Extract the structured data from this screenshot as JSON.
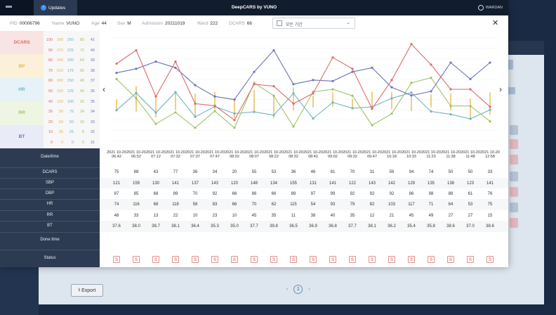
{
  "app": {
    "title": "DeepCARS by VUNO",
    "updates_label": "Updates",
    "updates_icon": "arrow-up-icon",
    "user_label": "WARDAN"
  },
  "patient": {
    "pid_label": "PID",
    "pid": "00006796",
    "name_label": "Name",
    "name": "VUNO",
    "age_label": "Age",
    "age": "44",
    "sex_label": "Sex",
    "sex": "M",
    "admission_label": "Admission",
    "admission": "20211019",
    "ward_label": "Ward",
    "ward": "222",
    "dcars_label": "DCARS",
    "dcars": "66"
  },
  "period_select": {
    "value": "모든 기간"
  },
  "colors": {
    "dcars": "#e06a6a",
    "bp": "#e6b84d",
    "hr": "#6fb3c9",
    "rr": "#9ec46a",
    "bt": "#6c74b8"
  },
  "chart_labels": [
    "DCARS",
    "BP",
    "HR",
    "RR",
    "BT"
  ],
  "scale_columns": [
    {
      "color": "#e06a6a",
      "values": [
        "100",
        "90",
        "80",
        "70",
        "60",
        "50",
        "40",
        "30",
        "20",
        "10",
        "0"
      ]
    },
    {
      "color": "#e6b84d",
      "values": [
        "300",
        "270",
        "240",
        "210",
        "180",
        "150",
        "120",
        "90",
        "60",
        "30",
        "0"
      ]
    },
    {
      "color": "#6fb3c9",
      "values": [
        "250",
        "225",
        "200",
        "175",
        "150",
        "125",
        "100",
        "75",
        "50",
        "25",
        "0"
      ]
    },
    {
      "color": "#9ec46a",
      "values": [
        "80",
        "72",
        "64",
        "56",
        "48",
        "40",
        "32",
        "24",
        "16",
        "8",
        "0"
      ]
    },
    {
      "color": "#6c74b8",
      "values": [
        "41",
        "40",
        "39",
        "38",
        "37",
        "36",
        "35",
        "34",
        "33",
        "32",
        "31"
      ]
    }
  ],
  "table": {
    "row_labels": [
      "Date/time",
      "DCARS",
      "SBP",
      "DBP",
      "HR",
      "RR",
      "BT",
      "Done time",
      "Status"
    ],
    "dates": [
      "2021 10-20 06:42",
      "2021 10-20 06:52",
      "2021 10-20 07:12",
      "2021 10-20 07:32",
      "2021 10-20 07:37",
      "2021 10-20 07:47",
      "2021 10-20 08:02",
      "2021 10-20 08:07",
      "2021 10-20 08:22",
      "2021 10-20 08:32",
      "2021 10-20 08:42",
      "2021 10-20 09:02",
      "2021 10-20 09:32",
      "2021 10-20 09:47",
      "2021 10-20 10:18",
      "2021 10-20 10:33",
      "2021 10-20 11:23",
      "2021 10-20 11:38",
      "2021 10-20 11:48",
      "2021 10-20 12:58"
    ],
    "dcars": [
      "75",
      "88",
      "43",
      "77",
      "36",
      "34",
      "20",
      "55",
      "53",
      "36",
      "46",
      "81",
      "70",
      "31",
      "59",
      "94",
      "74",
      "50",
      "50",
      "33"
    ],
    "sbp": [
      "121",
      "159",
      "130",
      "141",
      "137",
      "143",
      "120",
      "148",
      "134",
      "155",
      "131",
      "141",
      "122",
      "143",
      "142",
      "129",
      "135",
      "138",
      "123",
      "141"
    ],
    "dbp": [
      "87",
      "85",
      "68",
      "89",
      "70",
      "92",
      "66",
      "86",
      "66",
      "89",
      "97",
      "99",
      "92",
      "92",
      "92",
      "86",
      "98",
      "88",
      "61",
      "76"
    ],
    "hr": [
      "74",
      "116",
      "68",
      "118",
      "58",
      "83",
      "66",
      "70",
      "62",
      "115",
      "54",
      "93",
      "79",
      "82",
      "103",
      "117",
      "71",
      "64",
      "53",
      "75"
    ],
    "rr": [
      "48",
      "33",
      "13",
      "22",
      "10",
      "23",
      "10",
      "45",
      "35",
      "11",
      "38",
      "40",
      "35",
      "12",
      "21",
      "45",
      "49",
      "27",
      "27",
      "15"
    ],
    "bt": [
      "37.6",
      "38.0",
      "38.7",
      "38.1",
      "36.4",
      "35.3",
      "35.0",
      "37.7",
      "39.8",
      "36.5",
      "36.9",
      "36.8",
      "37.7",
      "38.1",
      "36.2",
      "35.4",
      "35.8",
      "38.6",
      "37.0",
      "38.6"
    ],
    "status": [
      "S",
      "S",
      "S",
      "S",
      "S",
      "S",
      "S",
      "S",
      "S",
      "S",
      "S",
      "S",
      "S",
      "S",
      "S",
      "S",
      "S",
      "S",
      "S",
      "S"
    ]
  },
  "background": {
    "export_label": "Export",
    "page_current": "1"
  }
}
